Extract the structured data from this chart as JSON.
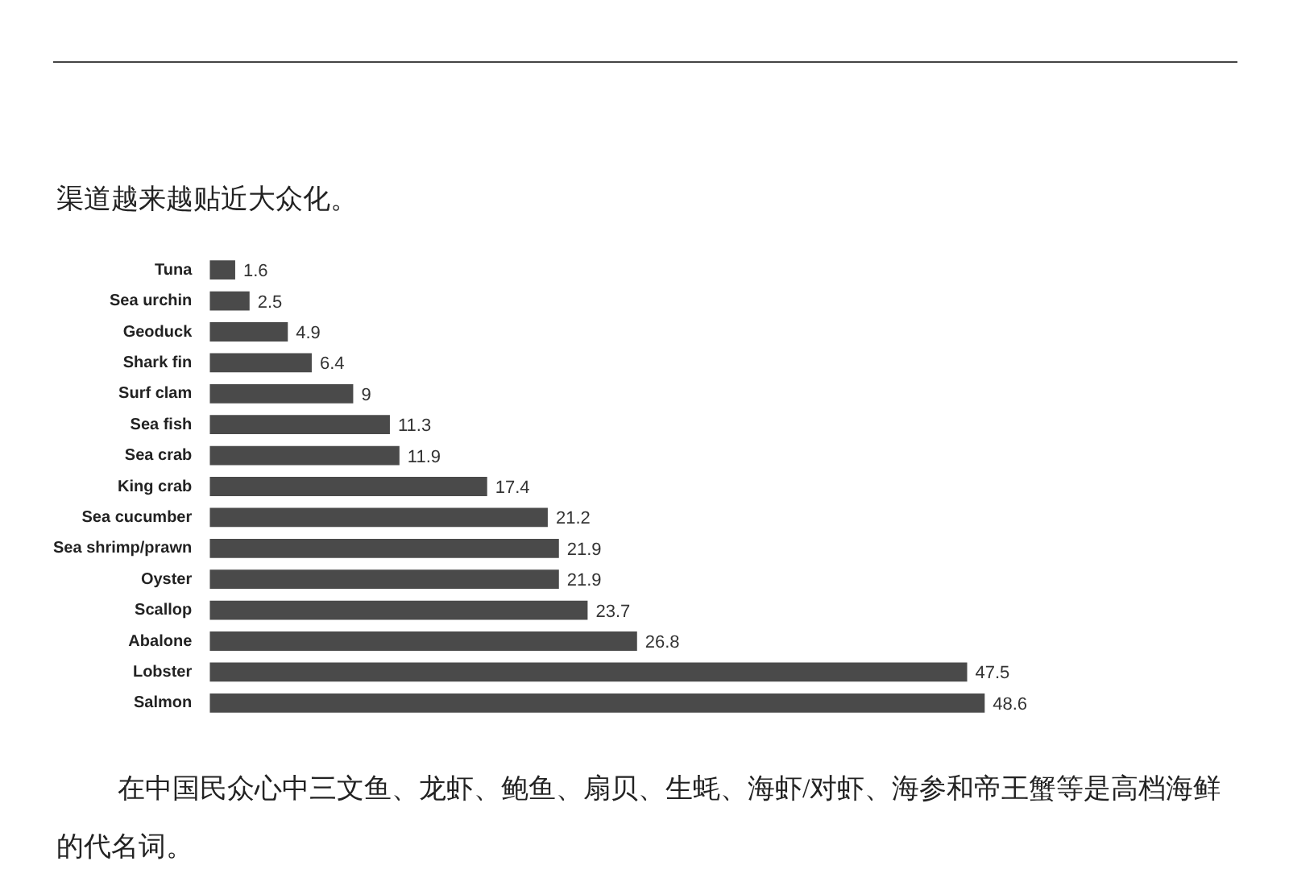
{
  "chart_data": {
    "type": "bar",
    "orientation": "horizontal",
    "categories": [
      "Tuna",
      "Sea urchin",
      "Geoduck",
      "Shark fin",
      "Surf clam",
      "Sea fish",
      "Sea crab",
      "King crab",
      "Sea cucumber",
      "Sea shrimp/prawn",
      "Oyster",
      "Scallop",
      "Abalone",
      "Lobster",
      "Salmon"
    ],
    "values": [
      1.6,
      2.5,
      4.9,
      6.4,
      9,
      11.3,
      11.9,
      17.4,
      21.2,
      21.9,
      21.9,
      23.7,
      26.8,
      47.5,
      48.6
    ],
    "color": "#4a4a4a",
    "data_labels": true,
    "annotations": [
      "渠道越来越贴近大众化。",
      "在中国民众心中三文鱼、龙虾、鲍鱼、扇贝、生蚝、海虾/对虾、海参和帝王蟹等是高档海鲜的代名词。"
    ]
  }
}
